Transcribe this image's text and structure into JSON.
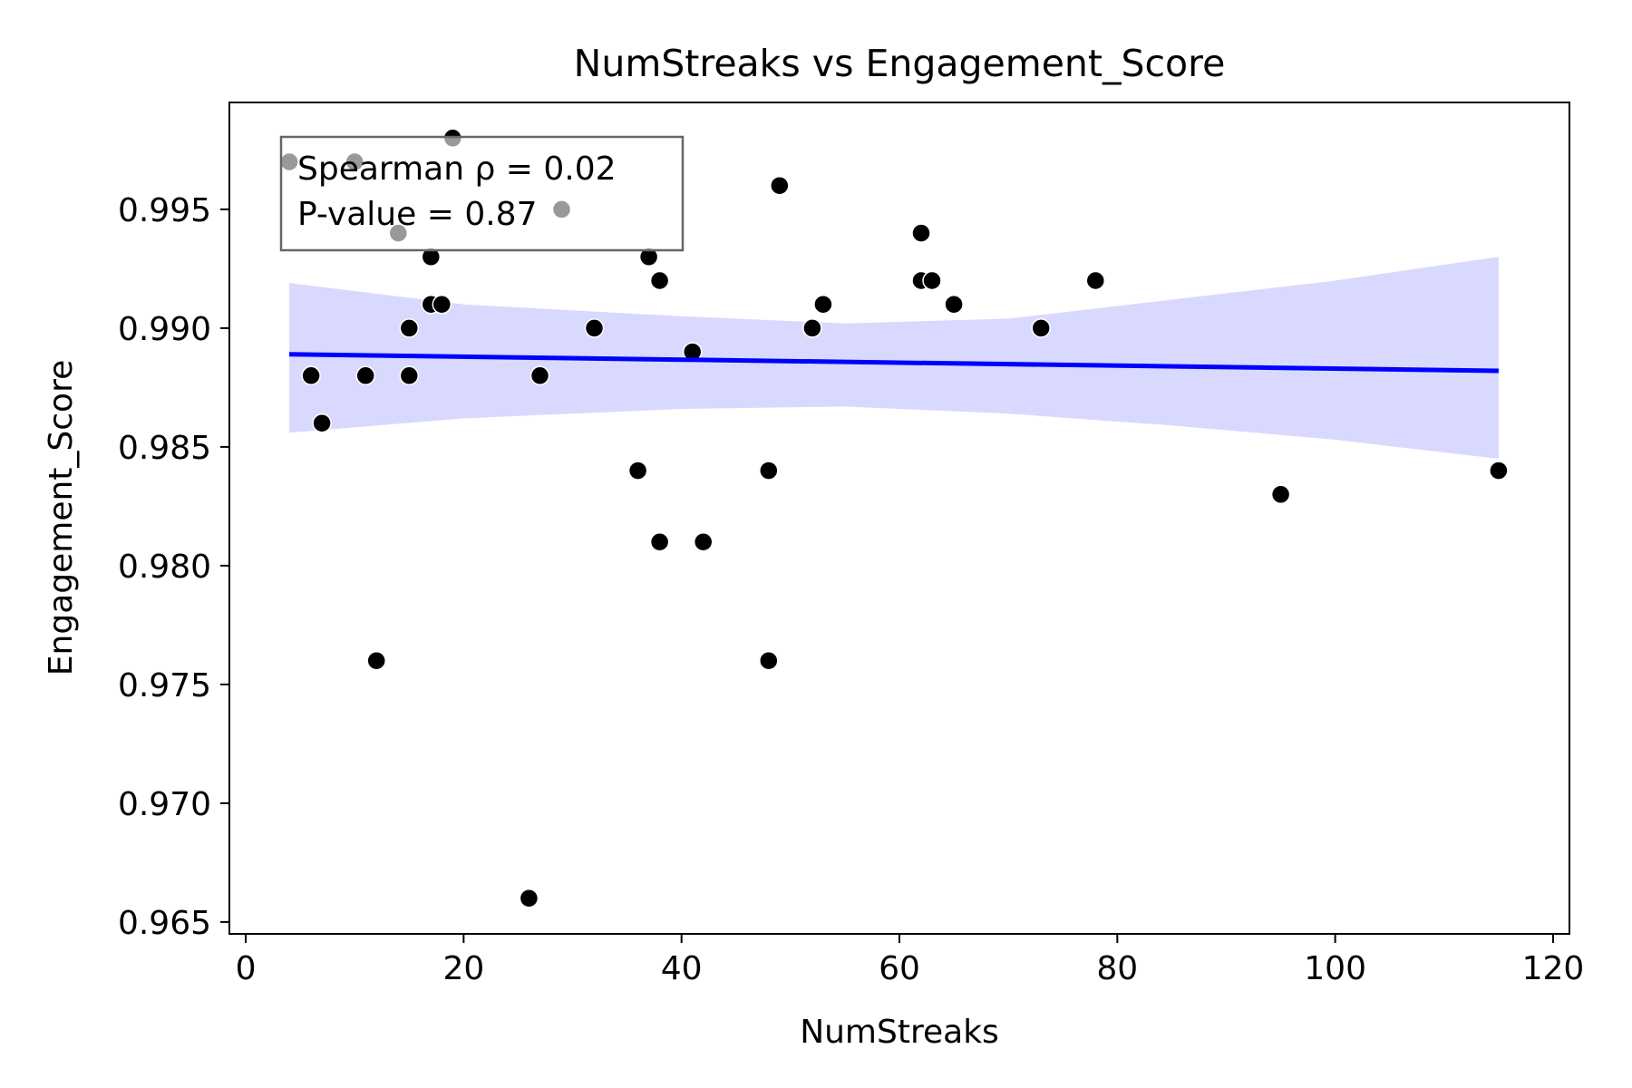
{
  "chart_data": {
    "type": "scatter",
    "title": "NumStreaks vs Engagement_Score",
    "xlabel": "NumStreaks",
    "ylabel": "Engagement_Score",
    "xlim": [
      -1.5,
      121.5
    ],
    "ylim": [
      0.9645,
      0.9995
    ],
    "xticks": [
      0,
      20,
      40,
      60,
      80,
      100,
      120
    ],
    "yticks": [
      0.965,
      0.97,
      0.975,
      0.98,
      0.985,
      0.99,
      0.995
    ],
    "xtick_labels": [
      "0",
      "20",
      "40",
      "60",
      "80",
      "100",
      "120"
    ],
    "ytick_labels": [
      "0.965",
      "0.970",
      "0.975",
      "0.980",
      "0.985",
      "0.990",
      "0.995"
    ],
    "grid": false,
    "annotation": {
      "lines": [
        "Spearman ρ = 0.02",
        "P-value = 0.87"
      ],
      "placement": "top-left"
    },
    "points": [
      {
        "x": 4,
        "y": 0.997
      },
      {
        "x": 6,
        "y": 0.988
      },
      {
        "x": 7,
        "y": 0.986
      },
      {
        "x": 10,
        "y": 0.997
      },
      {
        "x": 11,
        "y": 0.988
      },
      {
        "x": 12,
        "y": 0.976
      },
      {
        "x": 14,
        "y": 0.994
      },
      {
        "x": 15,
        "y": 0.99
      },
      {
        "x": 15,
        "y": 0.988
      },
      {
        "x": 17,
        "y": 0.993
      },
      {
        "x": 17,
        "y": 0.991
      },
      {
        "x": 18,
        "y": 0.991
      },
      {
        "x": 19,
        "y": 0.998
      },
      {
        "x": 26,
        "y": 0.966
      },
      {
        "x": 27,
        "y": 0.988
      },
      {
        "x": 29,
        "y": 0.995
      },
      {
        "x": 32,
        "y": 0.99
      },
      {
        "x": 36,
        "y": 0.984
      },
      {
        "x": 37,
        "y": 0.993
      },
      {
        "x": 38,
        "y": 0.992
      },
      {
        "x": 38,
        "y": 0.981
      },
      {
        "x": 41,
        "y": 0.989
      },
      {
        "x": 42,
        "y": 0.981
      },
      {
        "x": 48,
        "y": 0.984
      },
      {
        "x": 48,
        "y": 0.976
      },
      {
        "x": 49,
        "y": 0.996
      },
      {
        "x": 52,
        "y": 0.99
      },
      {
        "x": 53,
        "y": 0.991
      },
      {
        "x": 62,
        "y": 0.994
      },
      {
        "x": 62,
        "y": 0.992
      },
      {
        "x": 63,
        "y": 0.992
      },
      {
        "x": 65,
        "y": 0.991
      },
      {
        "x": 73,
        "y": 0.99
      },
      {
        "x": 78,
        "y": 0.992
      },
      {
        "x": 95,
        "y": 0.983
      },
      {
        "x": 115,
        "y": 0.984
      }
    ],
    "regression": {
      "x": [
        4,
        115
      ],
      "y": [
        0.9889,
        0.9882
      ]
    },
    "confidence_band": {
      "x": [
        4,
        20,
        40,
        55,
        70,
        85,
        100,
        115
      ],
      "upper": [
        0.9919,
        0.991,
        0.9905,
        0.9902,
        0.9904,
        0.9912,
        0.992,
        0.993
      ],
      "lower": [
        0.9856,
        0.9862,
        0.9866,
        0.9867,
        0.9864,
        0.9859,
        0.9853,
        0.9845
      ]
    },
    "colors": {
      "point": "#000000",
      "line": "#0000ff",
      "band": "#d9d9ff",
      "annotation_border": "#666666"
    }
  }
}
